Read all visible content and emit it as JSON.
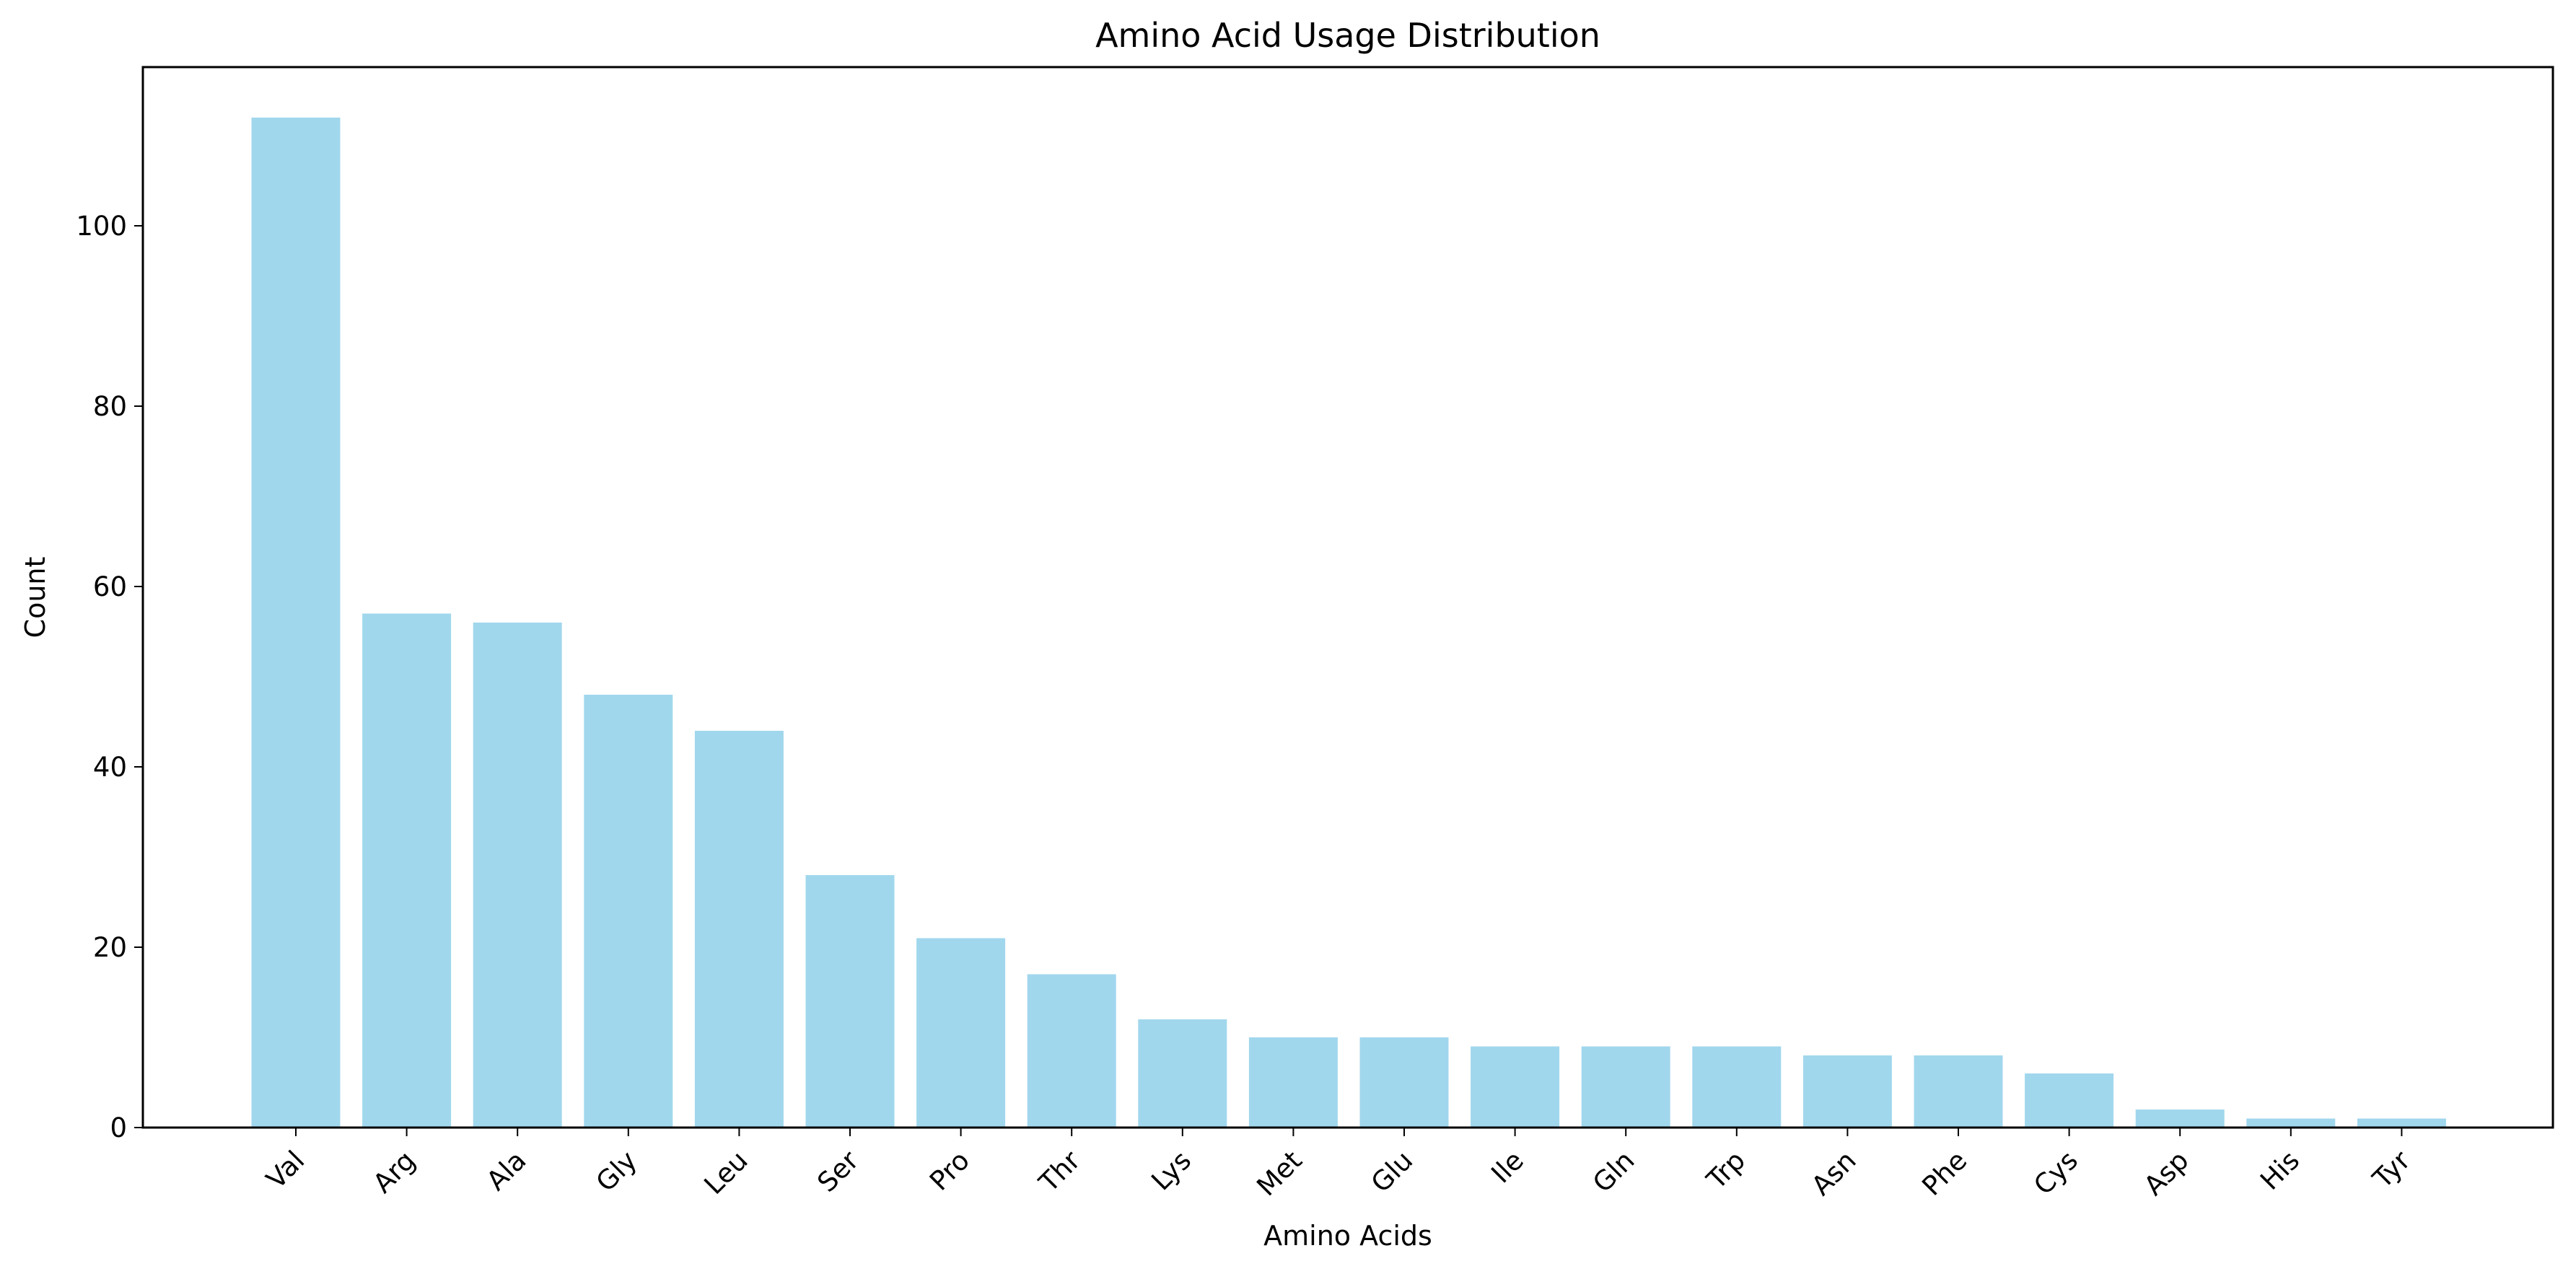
{
  "chart_data": {
    "type": "bar",
    "title": "Amino Acid Usage Distribution",
    "xlabel": "Amino Acids",
    "ylabel": "Count",
    "categories": [
      "Val",
      "Arg",
      "Ala",
      "Gly",
      "Leu",
      "Ser",
      "Pro",
      "Thr",
      "Lys",
      "Met",
      "Glu",
      "Ile",
      "Gln",
      "Trp",
      "Asn",
      "Phe",
      "Cys",
      "Asp",
      "His",
      "Tyr"
    ],
    "values": [
      112,
      57,
      56,
      48,
      44,
      28,
      21,
      17,
      12,
      10,
      10,
      9,
      9,
      9,
      8,
      8,
      6,
      2,
      1,
      1
    ],
    "ylim": [
      0,
      117.6
    ],
    "yticks": [
      0,
      20,
      40,
      60,
      80,
      100
    ],
    "grid": false,
    "bar_color": "#a1d7ed",
    "x_tick_rotation_deg": 45
  }
}
